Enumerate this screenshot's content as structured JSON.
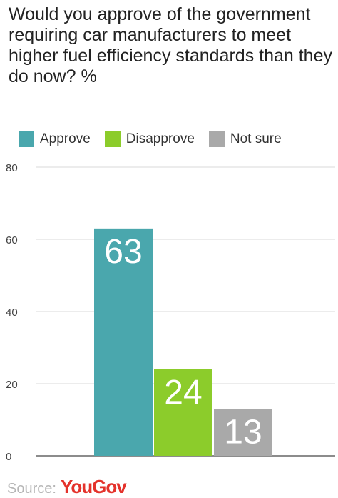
{
  "title": "Would you approve of the government requiring car manufacturers to meet higher fuel efficiency standards than they do now? %",
  "legend": [
    {
      "label": "Approve",
      "color": "#4aa7ad"
    },
    {
      "label": "Disapprove",
      "color": "#8ccc2b"
    },
    {
      "label": "Not sure",
      "color": "#a9a9a9"
    }
  ],
  "source": {
    "label": "Source:",
    "brand": "YouGov"
  },
  "chart_data": {
    "type": "bar",
    "title": "Would you approve of the government requiring car manufacturers to meet higher fuel efficiency standards than they do now? %",
    "categories": [
      "Approve",
      "Disapprove",
      "Not sure"
    ],
    "values": [
      63,
      24,
      13
    ],
    "colors": [
      "#4aa7ad",
      "#8ccc2b",
      "#a9a9a9"
    ],
    "ylim": [
      0,
      80
    ],
    "yticks": [
      0,
      20,
      40,
      60,
      80
    ],
    "grid": true,
    "legend_position": "top-left",
    "data_labels": [
      "63",
      "24",
      "13"
    ]
  }
}
